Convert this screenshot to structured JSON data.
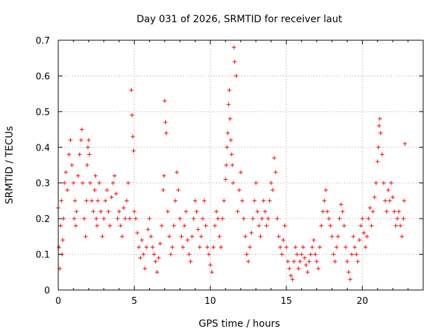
{
  "chart_data": {
    "type": "scatter",
    "title": "Day 031 of 2026, SRMTID for receiver laut",
    "xlabel": "GPS time / hours",
    "ylabel": "SRMTID / TECUs",
    "xlim": [
      0,
      24
    ],
    "ylim": [
      0,
      0.7
    ],
    "xticks": [
      0,
      5,
      10,
      15,
      20
    ],
    "xtick_labels": [
      "0",
      "5",
      "10",
      "15",
      "20"
    ],
    "yticks": [
      0,
      0.1,
      0.2,
      0.3,
      0.4,
      0.5,
      0.6,
      0.7
    ],
    "ytick_labels": [
      "0",
      "0.1",
      "0.2",
      "0.3",
      "0.4",
      "0.5",
      "0.6",
      "0.7"
    ],
    "grid": true,
    "marker": "+",
    "marker_color": "#ff0000",
    "series": [
      {
        "name": "SRMTID",
        "x": [
          0.0,
          0.05,
          0.1,
          0.15,
          0.2,
          0.25,
          0.3,
          0.35,
          0.4,
          0.5,
          0.6,
          0.7,
          0.8,
          0.9,
          1.0,
          1.05,
          1.1,
          1.15,
          1.2,
          1.3,
          1.4,
          1.5,
          1.55,
          1.6,
          1.7,
          1.8,
          1.85,
          1.9,
          1.95,
          2.0,
          2.05,
          2.1,
          2.2,
          2.3,
          2.4,
          2.45,
          2.5,
          2.55,
          2.6,
          2.7,
          2.8,
          2.9,
          3.0,
          3.1,
          3.2,
          3.3,
          3.4,
          3.5,
          3.6,
          3.7,
          3.8,
          3.9,
          4.0,
          4.1,
          4.2,
          4.3,
          4.4,
          4.5,
          4.6,
          4.7,
          4.8,
          4.85,
          4.9,
          4.95,
          5.0,
          5.1,
          5.2,
          5.3,
          5.4,
          5.5,
          5.6,
          5.7,
          5.8,
          5.9,
          6.0,
          6.1,
          6.2,
          6.3,
          6.4,
          6.5,
          6.6,
          6.7,
          6.8,
          6.9,
          6.95,
          7.0,
          7.05,
          7.1,
          7.2,
          7.3,
          7.4,
          7.5,
          7.6,
          7.7,
          7.8,
          7.9,
          8.0,
          8.1,
          8.2,
          8.3,
          8.4,
          8.5,
          8.6,
          8.7,
          8.8,
          8.9,
          9.0,
          9.1,
          9.2,
          9.3,
          9.4,
          9.5,
          9.6,
          9.7,
          9.8,
          9.9,
          10.0,
          10.1,
          10.2,
          10.3,
          10.4,
          10.5,
          10.6,
          10.7,
          10.8,
          10.9,
          11.0,
          11.05,
          11.1,
          11.15,
          11.2,
          11.25,
          11.3,
          11.35,
          11.4,
          11.45,
          11.5,
          11.55,
          11.6,
          11.7,
          11.8,
          11.9,
          12.0,
          12.1,
          12.2,
          12.3,
          12.4,
          12.5,
          12.6,
          12.7,
          12.8,
          12.9,
          13.0,
          13.1,
          13.2,
          13.3,
          13.4,
          13.5,
          13.6,
          13.7,
          13.8,
          13.9,
          14.0,
          14.1,
          14.2,
          14.3,
          14.4,
          14.5,
          14.6,
          14.7,
          14.8,
          14.9,
          15.0,
          15.1,
          15.2,
          15.3,
          15.4,
          15.5,
          15.6,
          15.7,
          15.8,
          15.9,
          16.0,
          16.1,
          16.2,
          16.3,
          16.4,
          16.5,
          16.6,
          16.7,
          16.8,
          16.9,
          17.0,
          17.1,
          17.2,
          17.3,
          17.4,
          17.5,
          17.6,
          17.7,
          17.8,
          17.9,
          18.0,
          18.1,
          18.2,
          18.3,
          18.4,
          18.5,
          18.6,
          18.7,
          18.8,
          18.9,
          19.0,
          19.1,
          19.2,
          19.3,
          19.4,
          19.5,
          19.6,
          19.7,
          19.8,
          19.9,
          20.0,
          20.1,
          20.2,
          20.3,
          20.4,
          20.5,
          20.6,
          20.7,
          20.8,
          20.9,
          21.0,
          21.05,
          21.1,
          21.15,
          21.2,
          21.3,
          21.4,
          21.5,
          21.6,
          21.7,
          21.8,
          21.9,
          22.0,
          22.1,
          22.2,
          22.3,
          22.4,
          22.5,
          22.6,
          22.7,
          22.75,
          22.8
        ],
        "y": [
          0.23,
          0.12,
          0.06,
          0.18,
          0.25,
          0.1,
          0.14,
          0.2,
          0.3,
          0.33,
          0.28,
          0.38,
          0.42,
          0.35,
          0.3,
          0.2,
          0.25,
          0.18,
          0.22,
          0.32,
          0.38,
          0.42,
          0.45,
          0.3,
          0.2,
          0.15,
          0.25,
          0.35,
          0.4,
          0.42,
          0.38,
          0.3,
          0.25,
          0.22,
          0.28,
          0.32,
          0.2,
          0.18,
          0.25,
          0.3,
          0.22,
          0.15,
          0.2,
          0.25,
          0.28,
          0.22,
          0.18,
          0.26,
          0.3,
          0.32,
          0.27,
          0.2,
          0.22,
          0.18,
          0.15,
          0.23,
          0.2,
          0.25,
          0.3,
          0.2,
          0.56,
          0.49,
          0.43,
          0.39,
          0.22,
          0.2,
          0.16,
          0.12,
          0.09,
          0.14,
          0.1,
          0.06,
          0.12,
          0.17,
          0.2,
          0.15,
          0.12,
          0.1,
          0.08,
          0.05,
          0.09,
          0.13,
          0.18,
          0.28,
          0.32,
          0.53,
          0.47,
          0.44,
          0.22,
          0.15,
          0.1,
          0.12,
          0.18,
          0.25,
          0.33,
          0.28,
          0.2,
          0.15,
          0.12,
          0.18,
          0.22,
          0.14,
          0.1,
          0.08,
          0.15,
          0.2,
          0.25,
          0.22,
          0.17,
          0.12,
          0.15,
          0.2,
          0.25,
          0.18,
          0.12,
          0.1,
          0.07,
          0.05,
          0.12,
          0.18,
          0.22,
          0.2,
          0.15,
          0.12,
          0.2,
          0.25,
          0.31,
          0.35,
          0.4,
          0.44,
          0.52,
          0.56,
          0.48,
          0.42,
          0.38,
          0.35,
          0.3,
          0.68,
          0.64,
          0.6,
          0.22,
          0.28,
          0.33,
          0.25,
          0.2,
          0.15,
          0.1,
          0.08,
          0.12,
          0.16,
          0.2,
          0.25,
          0.3,
          0.22,
          0.18,
          0.15,
          0.2,
          0.25,
          0.22,
          0.18,
          0.2,
          0.25,
          0.3,
          0.28,
          0.37,
          0.33,
          0.2,
          0.15,
          0.12,
          0.1,
          0.14,
          0.18,
          0.12,
          0.08,
          0.06,
          0.04,
          0.03,
          0.08,
          0.12,
          0.1,
          0.06,
          0.08,
          0.1,
          0.12,
          0.09,
          0.07,
          0.05,
          0.08,
          0.1,
          0.12,
          0.14,
          0.1,
          0.08,
          0.06,
          0.12,
          0.18,
          0.22,
          0.25,
          0.28,
          0.22,
          0.2,
          0.18,
          0.15,
          0.1,
          0.08,
          0.12,
          0.15,
          0.2,
          0.24,
          0.22,
          0.18,
          0.12,
          0.08,
          0.05,
          0.03,
          0.1,
          0.15,
          0.12,
          0.1,
          0.08,
          0.14,
          0.18,
          0.2,
          0.16,
          0.12,
          0.15,
          0.2,
          0.23,
          0.18,
          0.22,
          0.26,
          0.3,
          0.36,
          0.4,
          0.46,
          0.48,
          0.44,
          0.38,
          0.3,
          0.25,
          0.22,
          0.28,
          0.25,
          0.3,
          0.26,
          0.22,
          0.18,
          0.2,
          0.22,
          0.18,
          0.15,
          0.2,
          0.25,
          0.41
        ]
      }
    ]
  }
}
